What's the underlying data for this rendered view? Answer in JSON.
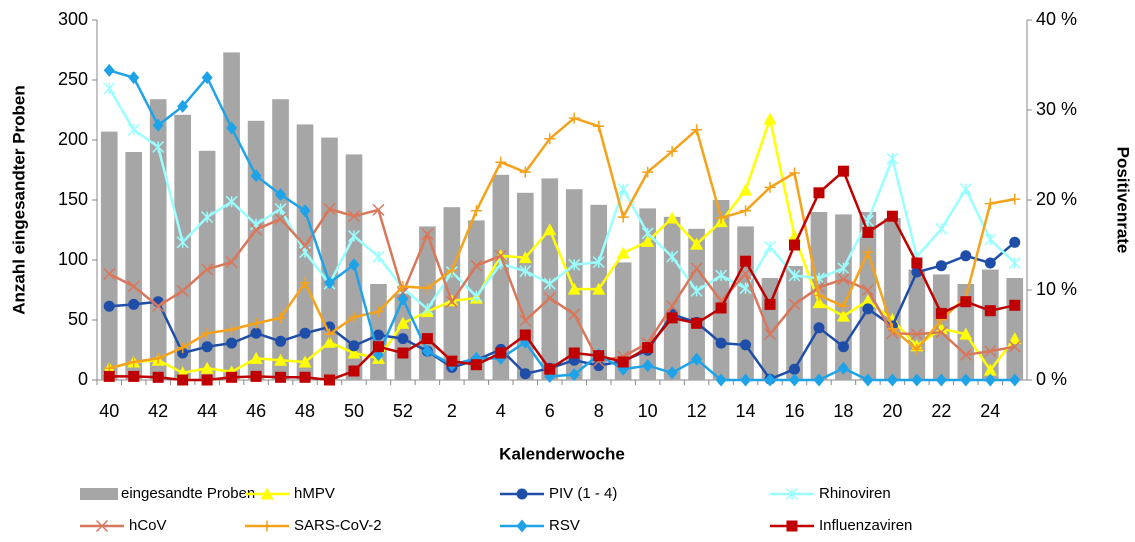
{
  "chart_data": {
    "type": "combo",
    "categories": [
      "40",
      null,
      "42",
      null,
      "44",
      null,
      "46",
      null,
      "48",
      null,
      "50",
      null,
      "52",
      null,
      "2",
      null,
      "4",
      null,
      "6",
      null,
      "8",
      null,
      "10",
      null,
      "12",
      null,
      "14",
      null,
      "16",
      null,
      "18",
      null,
      "20",
      null,
      "22",
      null,
      "24",
      null
    ],
    "x_label": "Kalenderwoche",
    "y_label": "Anzahl eingesandter Proben",
    "y2_label": "Positivenrate",
    "ylim": [
      0,
      300
    ],
    "yticks": [
      0,
      50,
      100,
      150,
      200,
      250,
      300
    ],
    "y2lim": [
      0,
      40
    ],
    "y2ticks": [
      {
        "value": 0,
        "label": "0 %"
      },
      {
        "value": 10,
        "label": "10 %"
      },
      {
        "value": 20,
        "label": "20 %"
      },
      {
        "value": 30,
        "label": "30 %"
      },
      {
        "value": 40,
        "label": "40 %"
      }
    ],
    "series": [
      {
        "name": "eingesandte Proben",
        "type": "bar",
        "color": "#a6a6a6",
        "values": [
          207,
          190,
          234,
          221,
          191,
          273,
          216,
          234,
          213,
          202,
          188,
          80,
          72,
          128,
          144,
          133,
          171,
          156,
          168,
          159,
          146,
          98,
          143,
          136,
          126,
          150,
          128,
          85,
          95,
          140,
          138,
          140,
          135,
          92,
          88,
          80,
          92,
          85
        ]
      },
      {
        "name": "hMPV",
        "type": "line",
        "marker": "triangle",
        "axis": "y2",
        "color": "#ffff00",
        "values": [
          1.3,
          2,
          2.2,
          0.8,
          1.3,
          0.9,
          2.4,
          2.2,
          2,
          4.2,
          3,
          2.4,
          6.3,
          7.6,
          8.8,
          9.1,
          13.8,
          13.6,
          16.7,
          10.1,
          10.1,
          14.1,
          15.4,
          18,
          15.1,
          17.6,
          21.1,
          29,
          16,
          8.6,
          7.1,
          8.8,
          6.7,
          3.8,
          5.7,
          5.1,
          1.1,
          4.6
        ]
      },
      {
        "name": "PIV (1 - 4)",
        "type": "line",
        "marker": "circle",
        "axis": "y2",
        "color": "#1f4ea8",
        "values": [
          8.2,
          8.4,
          8.7,
          3,
          3.7,
          4.1,
          5.2,
          4.3,
          5.2,
          5.9,
          3.8,
          5,
          4.6,
          3.2,
          1.4,
          2.2,
          3.4,
          0.7,
          1.3,
          2.2,
          1.6,
          2.1,
          3.3,
          7.3,
          6.4,
          4.1,
          3.9,
          0.1,
          1.2,
          5.8,
          3.7,
          7.9,
          6,
          12,
          12.7,
          13.8,
          13,
          15.3
        ]
      },
      {
        "name": "Rhinoviren",
        "type": "line",
        "marker": "asterisk",
        "axis": "y2",
        "color": "#99ffff",
        "values": [
          32.4,
          27.8,
          25.9,
          15.3,
          18.1,
          19.8,
          17.3,
          19,
          14.2,
          10.7,
          16,
          13.7,
          10.2,
          7.9,
          12,
          9.3,
          12.9,
          12.1,
          10.7,
          12.8,
          13.1,
          21.2,
          16.3,
          13.7,
          9.9,
          11.6,
          10.2,
          14.8,
          11.6,
          11.3,
          12.4,
          17.7,
          24.6,
          13.7,
          16.8,
          21.2,
          15.6,
          13
        ]
      },
      {
        "name": "hCoV",
        "type": "line",
        "marker": "x",
        "axis": "y2",
        "color": "#d9775b",
        "values": [
          11.8,
          10.4,
          8.2,
          9.9,
          12.3,
          13.1,
          16.7,
          17.9,
          14.9,
          19,
          18.2,
          18.9,
          9.7,
          16.2,
          8.7,
          12.7,
          13.8,
          6.6,
          9.1,
          7.3,
          2.1,
          2.6,
          4.1,
          8.2,
          12.4,
          8.8,
          11.8,
          5.1,
          8.4,
          10.3,
          11.2,
          10,
          5.2,
          5.1,
          5.3,
          2.8,
          3.2,
          3.7
        ]
      },
      {
        "name": "SARS-CoV-2",
        "type": "line",
        "marker": "plus",
        "axis": "y2",
        "color": "#f5a21b",
        "values": [
          1.3,
          2,
          2.4,
          3.6,
          5.2,
          5.6,
          6.3,
          6.9,
          10.8,
          5.1,
          7,
          7.6,
          10.4,
          10.2,
          12.2,
          18.8,
          24.2,
          23.1,
          26.8,
          29.1,
          28.2,
          18.1,
          23.1,
          25.4,
          27.8,
          18,
          18.8,
          21.4,
          23,
          9.4,
          8.2,
          14.2,
          5.7,
          3.4,
          6.7,
          9.2,
          19.6,
          20.1
        ]
      },
      {
        "name": "RSV",
        "type": "line",
        "marker": "diamond",
        "axis": "y2",
        "color": "#1fa3e8",
        "values": [
          34.4,
          33.6,
          28.3,
          30.4,
          33.6,
          28,
          22.7,
          20.6,
          18.8,
          10.8,
          12.8,
          2.8,
          9,
          3.2,
          1.7,
          2.4,
          2.4,
          4.2,
          0.4,
          0.6,
          2.8,
          1.2,
          1.6,
          0.8,
          2.3,
          0,
          0,
          0,
          0,
          0,
          1.3,
          0,
          0,
          0,
          0,
          0,
          0,
          0
        ]
      },
      {
        "name": "Influenzaviren",
        "type": "line",
        "marker": "square",
        "axis": "y2",
        "color": "#c00000",
        "values": [
          0.4,
          0.4,
          0.3,
          0,
          0,
          0.3,
          0.4,
          0.3,
          0.3,
          0,
          1,
          3.7,
          3,
          4.6,
          2.1,
          1.7,
          3,
          5,
          1.2,
          3,
          2.7,
          2,
          3.6,
          6.9,
          6.3,
          8,
          13.2,
          8.4,
          15,
          20.8,
          23.2,
          16.4,
          18.2,
          13,
          7.4,
          8.7,
          7.7,
          8.3
        ]
      }
    ]
  }
}
